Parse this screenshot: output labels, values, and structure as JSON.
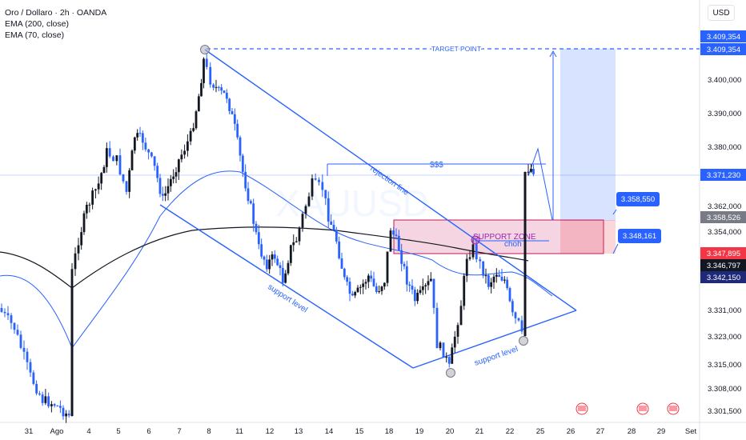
{
  "header": {
    "symbol_line": "Oro / Dollaro · 2h · OANDA",
    "ema200_label": "EMA (200, close)",
    "ema70_label": "EMA (70, close)",
    "currency": "USD",
    "watermark": "XAUUSD"
  },
  "chart_data": {
    "type": "candlestick",
    "y_axis": {
      "range": [
        3298,
        3414
      ],
      "ticks": [
        "3.400,000",
        "3.390,000",
        "3.380,000",
        "3.362,000",
        "3.354,000",
        "3.331,000",
        "3.323,000",
        "3.315,000",
        "3.308,000",
        "3.301,500"
      ],
      "tick_values": [
        3400,
        3390,
        3380,
        3362,
        3354,
        3331,
        3323,
        3315,
        3308,
        3301.5
      ]
    },
    "x_axis": {
      "labels": [
        "31",
        "Ago",
        "4",
        "5",
        "6",
        "7",
        "8",
        "11",
        "12",
        "13",
        "14",
        "15",
        "18",
        "19",
        "20",
        "21",
        "22",
        "25",
        "26",
        "27",
        "28",
        "29",
        "Set"
      ]
    },
    "price_tags": [
      {
        "label": "3.409,354",
        "value": 3409.354,
        "color": "#2962ff"
      },
      {
        "label": "3.409,354",
        "value": 3409.354,
        "color": "#2962ff"
      },
      {
        "label": "3.371,230",
        "value": 3371.23,
        "color": "#2962ff"
      },
      {
        "label": "3.358,526",
        "value": 3358.526,
        "color": "#787b86"
      },
      {
        "label": "3.347,895",
        "value": 3347.895,
        "color": "#f23645"
      },
      {
        "label": "3.346,797",
        "value": 3346.797,
        "color": "#131722"
      },
      {
        "label": "3.342,150",
        "value": 3342.15,
        "color": "#1e2a78"
      }
    ],
    "zone_tags": [
      {
        "label": "3.358,550",
        "value": 3358.55
      },
      {
        "label": "3.348,161",
        "value": 3348.161
      }
    ],
    "annotations": {
      "target_point": "TARGET POINT",
      "rejection_line": "rejection line",
      "support_level_1": "support level",
      "support_level_2": "support level",
      "dollar": "$$$",
      "support_zone": "SUPPORT ZONE",
      "choh": "choh"
    },
    "levels": {
      "target": 3409.354,
      "current": 3371.23,
      "zone_top": 3358.55,
      "zone_bottom": 3348.161
    },
    "colors": {
      "up": "#131722",
      "down": "#2962ff",
      "trendline": "#2962ff",
      "ema200": "#131722",
      "ema70": "#2962ff",
      "zone": "#c2185b"
    }
  }
}
